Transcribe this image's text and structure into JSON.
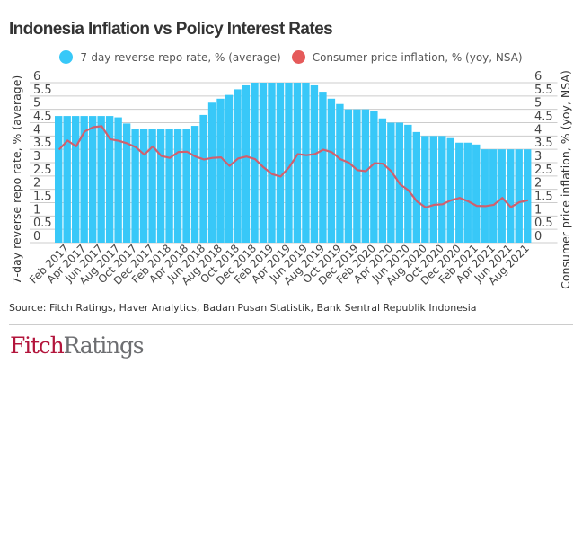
{
  "title": "Indonesia Inflation vs Policy Interest Rates",
  "source": "Source: Fitch Ratings, Haver Analytics, Badan Pusan Statistik, Bank Sentral Republik Indonesia",
  "logo": {
    "part1": "Fitch",
    "part2": "Ratings"
  },
  "colors": {
    "bars": "#38c8f8",
    "line": "#d0606e",
    "legend_line": "#e55a5a",
    "grid": "#cccccc"
  },
  "chart_data": {
    "type": "bar+line",
    "title": "Indonesia Inflation vs Policy Interest Rates",
    "legend_position": "top",
    "grid": true,
    "ylabel_left": "7-day reverse repo rate, % (average)",
    "ylabel_right": "Consumer price inflation, % (yoy, NSA)",
    "ylim": [
      0,
      6
    ],
    "yticks": [
      "0",
      "0.5",
      "1",
      "1.5",
      "2",
      "2.5",
      "3",
      "3.5",
      "4",
      "4.5",
      "5",
      "5.5",
      "6"
    ],
    "x": [
      "Jan 2017",
      "Feb 2017",
      "Mar 2017",
      "Apr 2017",
      "May 2017",
      "Jun 2017",
      "Jul 2017",
      "Aug 2017",
      "Sep 2017",
      "Oct 2017",
      "Nov 2017",
      "Dec 2017",
      "Jan 2018",
      "Feb 2018",
      "Mar 2018",
      "Apr 2018",
      "May 2018",
      "Jun 2018",
      "Jul 2018",
      "Aug 2018",
      "Sep 2018",
      "Oct 2018",
      "Nov 2018",
      "Dec 2018",
      "Jan 2019",
      "Feb 2019",
      "Mar 2019",
      "Apr 2019",
      "May 2019",
      "Jun 2019",
      "Jul 2019",
      "Aug 2019",
      "Sep 2019",
      "Oct 2019",
      "Nov 2019",
      "Dec 2019",
      "Jan 2020",
      "Feb 2020",
      "Mar 2020",
      "Apr 2020",
      "May 2020",
      "Jun 2020",
      "Jul 2020",
      "Aug 2020",
      "Sep 2020",
      "Oct 2020",
      "Nov 2020",
      "Dec 2020",
      "Jan 2021",
      "Feb 2021",
      "Mar 2021",
      "Apr 2021",
      "May 2021",
      "Jun 2021",
      "Jul 2021",
      "Aug 2021"
    ],
    "xtick_labels": [
      "Feb 2017",
      "Apr 2017",
      "Jun 2017",
      "Aug 2017",
      "Oct 2017",
      "Dec 2017",
      "Feb 2018",
      "Apr 2018",
      "Jun 2018",
      "Aug 2018",
      "Oct 2018",
      "Dec 2018",
      "Feb 2019",
      "Apr 2019",
      "Jun 2019",
      "Aug 2019",
      "Oct 2019",
      "Dec 2019",
      "Feb 2020",
      "Apr 2020",
      "Jun 2020",
      "Aug 2020",
      "Oct 2020",
      "Dec 2020",
      "Feb 2021",
      "Apr 2021",
      "Jun 2021",
      "Aug 2021"
    ],
    "series": [
      {
        "name": "7-day reverse repo rate, % (average)",
        "type": "bar",
        "axis": "left",
        "values": [
          4.75,
          4.75,
          4.75,
          4.75,
          4.75,
          4.75,
          4.75,
          4.7,
          4.47,
          4.25,
          4.25,
          4.25,
          4.25,
          4.25,
          4.25,
          4.25,
          4.38,
          4.79,
          5.25,
          5.4,
          5.54,
          5.75,
          5.9,
          6,
          6,
          6,
          6,
          6,
          6,
          6,
          5.9,
          5.66,
          5.4,
          5.2,
          5,
          5,
          5,
          4.93,
          4.66,
          4.5,
          4.5,
          4.42,
          4.15,
          4,
          4,
          4,
          3.92,
          3.75,
          3.75,
          3.68,
          3.5,
          3.5,
          3.5,
          3.5,
          3.5,
          3.5
        ]
      },
      {
        "name": "Consumer price inflation, % (yoy, NSA)",
        "type": "line",
        "axis": "right",
        "values": [
          3.49,
          3.83,
          3.61,
          4.17,
          4.33,
          4.37,
          3.88,
          3.82,
          3.72,
          3.58,
          3.3,
          3.61,
          3.25,
          3.18,
          3.4,
          3.41,
          3.23,
          3.12,
          3.18,
          3.2,
          2.88,
          3.16,
          3.23,
          3.13,
          2.82,
          2.57,
          2.48,
          2.83,
          3.32,
          3.28,
          3.32,
          3.49,
          3.39,
          3.13,
          3.0,
          2.72,
          2.68,
          2.98,
          2.96,
          2.67,
          2.19,
          1.96,
          1.54,
          1.32,
          1.42,
          1.44,
          1.59,
          1.68,
          1.55,
          1.38,
          1.37,
          1.42,
          1.68,
          1.33,
          1.52,
          1.59
        ]
      }
    ]
  }
}
